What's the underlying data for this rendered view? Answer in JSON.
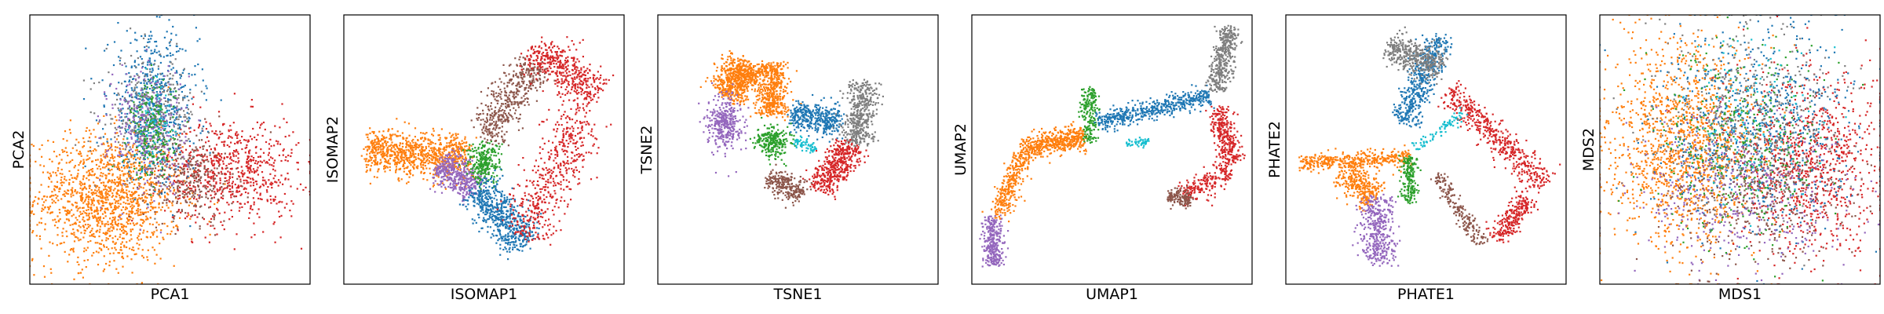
{
  "palette": {
    "blue": "#1f77b4",
    "orange": "#ff7f0e",
    "green": "#2ca02c",
    "red": "#d62728",
    "purple": "#9467bd",
    "brown": "#8c564b",
    "gray": "#7f7f7f",
    "cyan": "#17becf"
  },
  "chart_data": [
    {
      "type": "scatter",
      "title": "",
      "xlabel": "PCA1",
      "ylabel": "PCA2",
      "xlim": [
        0,
        100
      ],
      "ylim": [
        0,
        100
      ],
      "grid": false,
      "ticks": false,
      "clusters": [
        {
          "color": "orange",
          "cx": 28,
          "cy": 32,
          "sx": 13,
          "sy": 12,
          "n": 1400
        },
        {
          "color": "red",
          "cx": 72,
          "cy": 42,
          "sx": 12,
          "sy": 10,
          "n": 700
        },
        {
          "color": "brown",
          "cx": 57,
          "cy": 39,
          "sx": 8,
          "sy": 8,
          "n": 300
        },
        {
          "color": "blue",
          "cx": 44,
          "cy": 66,
          "sx": 8,
          "sy": 13,
          "n": 600
        },
        {
          "color": "gray",
          "cx": 43,
          "cy": 62,
          "sx": 8,
          "sy": 11,
          "n": 350
        },
        {
          "color": "purple",
          "cx": 42,
          "cy": 58,
          "sx": 7,
          "sy": 12,
          "n": 300
        },
        {
          "color": "green",
          "cx": 44,
          "cy": 57,
          "sx": 4,
          "sy": 9,
          "n": 200
        },
        {
          "color": "cyan",
          "cx": 44,
          "cy": 58,
          "sx": 4,
          "sy": 8,
          "n": 60
        }
      ]
    },
    {
      "type": "scatter",
      "title": "",
      "xlabel": "ISOMAP1",
      "ylabel": "ISOMAP2",
      "xlim": [
        0,
        100
      ],
      "ylim": [
        0,
        100
      ],
      "grid": false,
      "ticks": false,
      "clusters": [
        {
          "color": "orange",
          "from": [
            8,
            50
          ],
          "to": [
            45,
            47
          ],
          "spread": 4,
          "n": 900
        },
        {
          "color": "purple",
          "from": [
            35,
            45
          ],
          "to": [
            47,
            35
          ],
          "spread": 3.5,
          "n": 400
        },
        {
          "color": "green",
          "cx": 50,
          "cy": 45,
          "sx": 3,
          "sy": 4,
          "n": 250
        },
        {
          "color": "blue",
          "from": [
            48,
            36
          ],
          "to": [
            65,
            15
          ],
          "spread": 4,
          "n": 600
        },
        {
          "color": "brown",
          "from": [
            50,
            55
          ],
          "to": [
            68,
            82
          ],
          "spread": 3.5,
          "n": 450
        },
        {
          "color": "red",
          "from": [
            68,
            88
          ],
          "to": [
            90,
            70
          ],
          "spread": 4,
          "n": 450
        },
        {
          "color": "red",
          "from": [
            84,
            62
          ],
          "to": [
            64,
            18
          ],
          "spread": 5,
          "n": 500
        }
      ]
    },
    {
      "type": "scatter",
      "title": "",
      "xlabel": "TSNE1",
      "ylabel": "TSNE2",
      "xlim": [
        0,
        100
      ],
      "ylim": [
        0,
        100
      ],
      "grid": false,
      "ticks": false,
      "clusters": [
        {
          "color": "orange",
          "from": [
            32,
            82
          ],
          "to": [
            24,
            70
          ],
          "spread": 3.5,
          "n": 600
        },
        {
          "color": "orange",
          "from": [
            40,
            82
          ],
          "to": [
            41,
            63
          ],
          "spread": 3,
          "n": 500
        },
        {
          "color": "purple",
          "cx": 24,
          "cy": 60,
          "sx": 3,
          "sy": 5,
          "n": 350
        },
        {
          "color": "green",
          "cx": 41,
          "cy": 53,
          "sx": 3,
          "sy": 3,
          "n": 250
        },
        {
          "color": "blue",
          "from": [
            48,
            63
          ],
          "to": [
            65,
            60
          ],
          "spread": 2.8,
          "n": 400
        },
        {
          "color": "gray",
          "from": [
            73,
            75
          ],
          "to": [
            71,
            52
          ],
          "spread": 2.8,
          "n": 450
        },
        {
          "color": "red",
          "from": [
            69,
            52
          ],
          "to": [
            58,
            35
          ],
          "spread": 3,
          "n": 450
        },
        {
          "color": "brown",
          "from": [
            40,
            40
          ],
          "to": [
            52,
            33
          ],
          "spread": 2.4,
          "n": 250
        },
        {
          "color": "cyan",
          "from": [
            49,
            53
          ],
          "to": [
            56,
            50
          ],
          "spread": 1,
          "n": 60
        }
      ]
    },
    {
      "type": "scatter",
      "title": "",
      "xlabel": "UMAP1",
      "ylabel": "UMAP2",
      "xlim": [
        0,
        100
      ],
      "ylim": [
        0,
        100
      ],
      "grid": false,
      "ticks": false,
      "clusters": [
        {
          "color": "purple",
          "from": [
            7,
            25
          ],
          "to": [
            8,
            7
          ],
          "spread": 1.8,
          "n": 300
        },
        {
          "color": "orange",
          "from": [
            9,
            25
          ],
          "to": [
            18,
            48
          ],
          "spread": 2,
          "n": 300
        },
        {
          "color": "orange",
          "from": [
            18,
            50
          ],
          "to": [
            40,
            55
          ],
          "spread": 2.2,
          "n": 500
        },
        {
          "color": "green",
          "from": [
            42,
            53
          ],
          "to": [
            42,
            73
          ],
          "spread": 1.5,
          "n": 200
        },
        {
          "color": "blue",
          "from": [
            45,
            60
          ],
          "to": [
            85,
            70
          ],
          "spread": 1.8,
          "n": 500
        },
        {
          "color": "gray",
          "from": [
            87,
            72
          ],
          "to": [
            92,
            95
          ],
          "spread": 2,
          "n": 400
        },
        {
          "color": "red",
          "from": [
            88,
            65
          ],
          "to": [
            93,
            45
          ],
          "spread": 2.2,
          "n": 300
        },
        {
          "color": "red",
          "from": [
            92,
            42
          ],
          "to": [
            75,
            33
          ],
          "spread": 2.2,
          "n": 200
        },
        {
          "color": "brown",
          "from": [
            70,
            33
          ],
          "to": [
            78,
            31
          ],
          "spread": 1.4,
          "n": 150
        },
        {
          "color": "cyan",
          "from": [
            55,
            52
          ],
          "to": [
            63,
            53
          ],
          "spread": 0.8,
          "n": 50
        }
      ]
    },
    {
      "type": "scatter",
      "title": "",
      "xlabel": "PHATE1",
      "ylabel": "PHATE2",
      "xlim": [
        0,
        100
      ],
      "ylim": [
        0,
        100
      ],
      "grid": false,
      "ticks": false,
      "clusters": [
        {
          "color": "orange",
          "from": [
            5,
            45
          ],
          "to": [
            45,
            47
          ],
          "spread": 1.6,
          "n": 400
        },
        {
          "color": "orange",
          "from": [
            20,
            42
          ],
          "to": [
            32,
            32
          ],
          "spread": 3,
          "n": 300
        },
        {
          "color": "green",
          "from": [
            44,
            48
          ],
          "to": [
            44,
            30
          ],
          "spread": 1.5,
          "n": 200
        },
        {
          "color": "purple",
          "from": [
            32,
            32
          ],
          "to": [
            33,
            8
          ],
          "spread": 3,
          "n": 400
        },
        {
          "color": "blue",
          "from": [
            42,
            60
          ],
          "to": [
            55,
            92
          ],
          "spread": 2.5,
          "n": 500
        },
        {
          "color": "gray",
          "from": [
            37,
            88
          ],
          "to": [
            55,
            80
          ],
          "spread": 3,
          "n": 400
        },
        {
          "color": "red",
          "from": [
            58,
            72
          ],
          "to": [
            92,
            37
          ],
          "spread": 2.5,
          "n": 500
        },
        {
          "color": "red",
          "from": [
            87,
            32
          ],
          "to": [
            75,
            17
          ],
          "spread": 2.2,
          "n": 250
        },
        {
          "color": "brown",
          "from": [
            54,
            40
          ],
          "to": [
            70,
            15
          ],
          "spread": 1.5,
          "n": 200
        },
        {
          "color": "cyan",
          "from": [
            46,
            50
          ],
          "to": [
            64,
            64
          ],
          "spread": 1,
          "n": 80
        }
      ]
    },
    {
      "type": "scatter",
      "title": "",
      "xlabel": "MDS1",
      "ylabel": "MDS2",
      "xlim": [
        0,
        100
      ],
      "ylim": [
        0,
        100
      ],
      "grid": false,
      "ticks": false,
      "clusters": [
        {
          "color": "orange",
          "cx": 30,
          "cy": 52,
          "sx": 14,
          "sy": 19,
          "n": 1400
        },
        {
          "color": "red",
          "cx": 75,
          "cy": 45,
          "sx": 13,
          "sy": 17,
          "n": 900
        },
        {
          "color": "blue",
          "cx": 55,
          "cy": 58,
          "sx": 18,
          "sy": 19,
          "n": 700
        },
        {
          "color": "gray",
          "cx": 55,
          "cy": 60,
          "sx": 17,
          "sy": 18,
          "n": 450
        },
        {
          "color": "purple",
          "cx": 50,
          "cy": 35,
          "sx": 18,
          "sy": 16,
          "n": 450
        },
        {
          "color": "brown",
          "cx": 58,
          "cy": 32,
          "sx": 17,
          "sy": 14,
          "n": 350
        },
        {
          "color": "green",
          "cx": 50,
          "cy": 50,
          "sx": 15,
          "sy": 18,
          "n": 350
        },
        {
          "color": "cyan",
          "cx": 55,
          "cy": 58,
          "sx": 13,
          "sy": 15,
          "n": 120
        }
      ]
    }
  ]
}
